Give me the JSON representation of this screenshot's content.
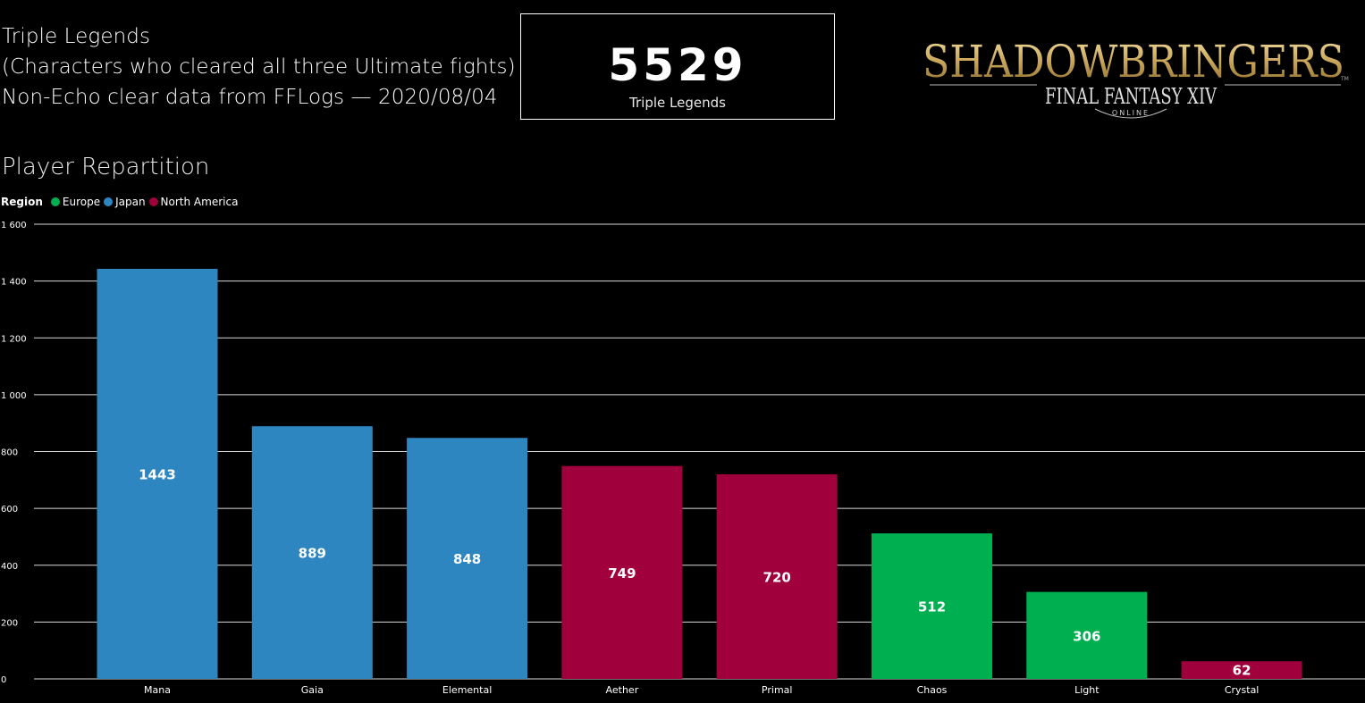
{
  "header": {
    "line1": "Triple Legends",
    "line2": "(Characters who cleared all three Ultimate fights)",
    "line3": "Non-Echo clear data from FFLogs — 2020/08/04"
  },
  "kpi": {
    "value": "5529",
    "label": "Triple Legends"
  },
  "logo": {
    "main": "SHADOWBRINGERS",
    "sub": "FINAL FANTASY XIV",
    "small": "ONLINE",
    "tm": "TM"
  },
  "section_title": "Player Repartition",
  "colors": {
    "Europe": "#00b050",
    "Japan": "#2e86c1",
    "North America": "#a0003c"
  },
  "chart_data": {
    "type": "bar",
    "title": "Player Repartition",
    "legend_title": "Region",
    "legend": [
      "Europe",
      "Japan",
      "North America"
    ],
    "legend_placement": "top-left",
    "categories": [
      "Mana",
      "Gaia",
      "Elemental",
      "Aether",
      "Primal",
      "Chaos",
      "Light",
      "Crystal"
    ],
    "values": [
      1443,
      889,
      848,
      749,
      720,
      512,
      306,
      62
    ],
    "regions": [
      "Japan",
      "Japan",
      "Japan",
      "North America",
      "North America",
      "Europe",
      "Europe",
      "North America"
    ],
    "yticks": [
      "0",
      "200",
      "400",
      "600",
      "800",
      "1 000",
      "1 200",
      "1 400",
      "1 600"
    ],
    "ylim": [
      0,
      1600
    ],
    "grid": true,
    "xlabel": "",
    "ylabel": ""
  }
}
